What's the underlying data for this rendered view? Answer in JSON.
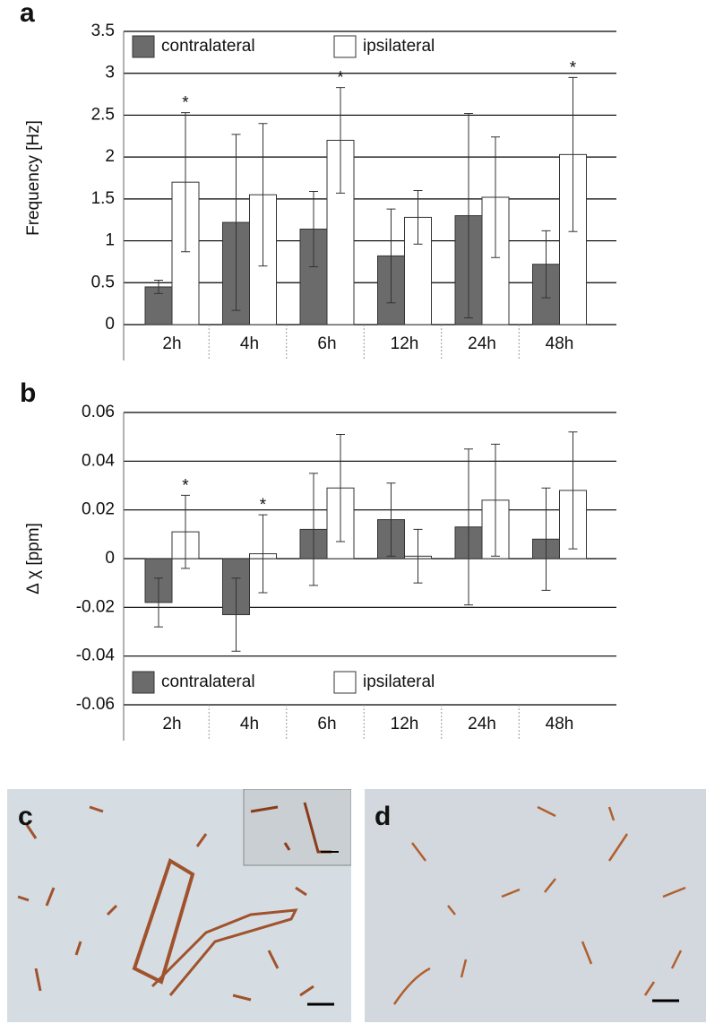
{
  "chart_data": [
    {
      "type": "bar",
      "label": "a",
      "ylabel": "Frequency [Hz]",
      "categories": [
        "2h",
        "4h",
        "6h",
        "12h",
        "24h",
        "48h"
      ],
      "series": [
        {
          "name": "contralateral",
          "color": "#6b6b6b",
          "values": [
            0.45,
            1.22,
            1.14,
            0.82,
            1.3,
            0.72
          ],
          "errors": [
            0.08,
            1.05,
            0.45,
            0.56,
            1.22,
            0.4
          ]
        },
        {
          "name": "ipsilateral",
          "color": "#ffffff",
          "values": [
            1.7,
            1.55,
            2.2,
            1.28,
            1.52,
            2.03
          ],
          "errors": [
            0.83,
            0.85,
            0.63,
            0.32,
            0.72,
            0.92
          ]
        }
      ],
      "significance": [
        "*",
        null,
        "*",
        null,
        null,
        "*"
      ],
      "ylim": [
        0,
        3.5
      ],
      "yticks": [
        0,
        0.5,
        1,
        1.5,
        2,
        2.5,
        3,
        3.5
      ],
      "grid": true,
      "legend": "top-left"
    },
    {
      "type": "bar",
      "label": "b",
      "ylabel": "Δ χ [ppm]",
      "categories": [
        "2h",
        "4h",
        "6h",
        "12h",
        "24h",
        "48h"
      ],
      "series": [
        {
          "name": "contralateral",
          "color": "#6b6b6b",
          "values": [
            -0.018,
            -0.023,
            0.012,
            0.016,
            0.013,
            0.008
          ],
          "errors": [
            0.01,
            0.015,
            0.023,
            0.015,
            0.032,
            0.021
          ]
        },
        {
          "name": "ipsilateral",
          "color": "#ffffff",
          "values": [
            0.011,
            0.002,
            0.029,
            0.001,
            0.024,
            0.028
          ],
          "errors": [
            0.015,
            0.016,
            0.022,
            0.011,
            0.023,
            0.024
          ]
        }
      ],
      "significance": [
        "*",
        "*",
        null,
        null,
        null,
        null
      ],
      "ylim": [
        -0.06,
        0.06
      ],
      "yticks": [
        -0.06,
        -0.04,
        -0.02,
        0,
        0.02,
        0.04,
        0.06
      ],
      "grid": true,
      "legend": "bottom-left"
    }
  ],
  "images": [
    {
      "label": "c"
    },
    {
      "label": "d"
    }
  ]
}
